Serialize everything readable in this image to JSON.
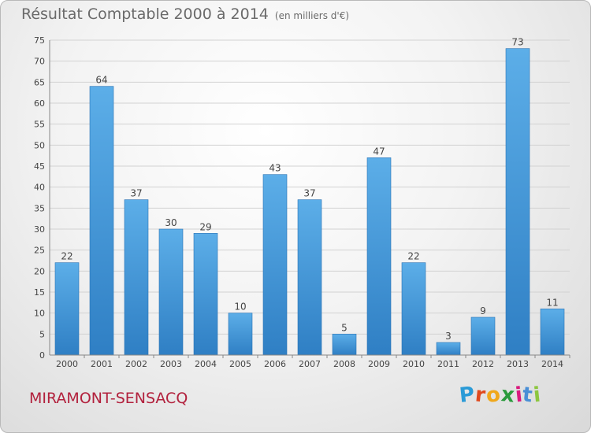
{
  "title": "Résultat Comptable 2000 à 2014",
  "unit": "(en milliers d'€)",
  "commune": "MIRAMONT-SENSACQ",
  "logo": {
    "letters": [
      "P",
      "r",
      "o",
      "x",
      "i",
      "t",
      "i"
    ],
    "colors": [
      "#2b9bd7",
      "#e04a1f",
      "#f0a81c",
      "#2a9a3c",
      "#d9197e",
      "#4a8fd6",
      "#8cc63f"
    ]
  },
  "chart_data": {
    "type": "bar",
    "categories": [
      "2000",
      "2001",
      "2002",
      "2003",
      "2004",
      "2005",
      "2006",
      "2007",
      "2008",
      "2009",
      "2010",
      "2011",
      "2012",
      "2013",
      "2014"
    ],
    "values": [
      22,
      64,
      37,
      30,
      29,
      10,
      43,
      37,
      5,
      47,
      22,
      3,
      9,
      73,
      11
    ],
    "ylim": [
      0,
      75
    ],
    "yticks": [
      0,
      5,
      10,
      15,
      20,
      25,
      30,
      35,
      40,
      45,
      50,
      55,
      60,
      65,
      70,
      75
    ],
    "grid": true,
    "bar_color": "#3f94d6"
  }
}
